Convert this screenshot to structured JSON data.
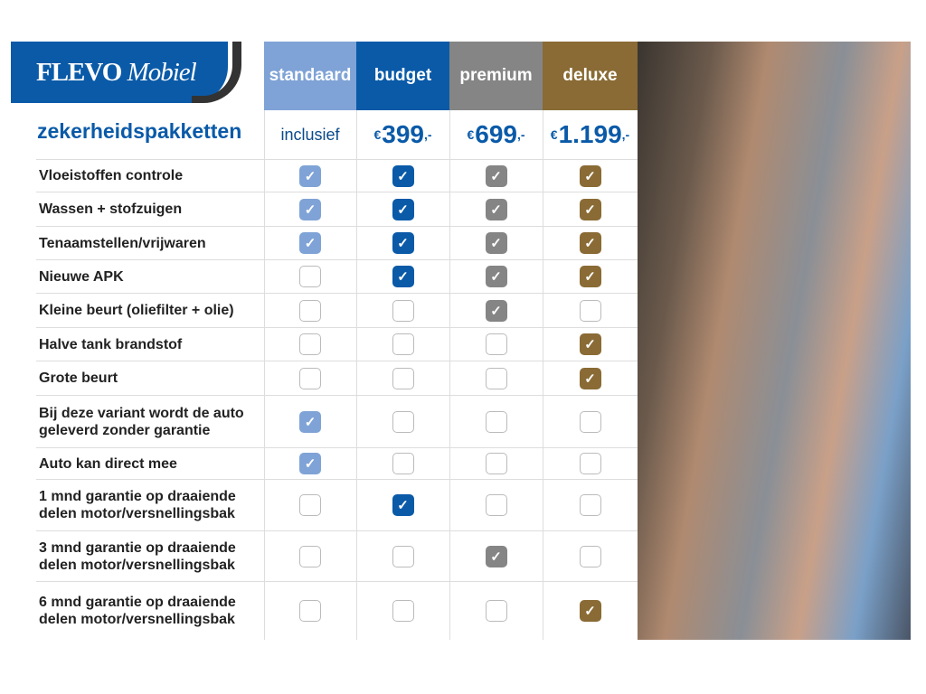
{
  "brand": {
    "name": "FLEVO",
    "name_italic": "Mobiel"
  },
  "title": "zekerheidspakketten",
  "packages": [
    {
      "name": "standaard",
      "price": "inclusief",
      "color": "#7fa3d6"
    },
    {
      "name": "budget",
      "currency": "€",
      "price": "399",
      "suffix": ",-",
      "color": "#0a5aa8"
    },
    {
      "name": "premium",
      "currency": "€",
      "price": "699",
      "suffix": ",-",
      "color": "#858585"
    },
    {
      "name": "deluxe",
      "currency": "€",
      "price": "1.199",
      "suffix": ",-",
      "color": "#8a6b35"
    }
  ],
  "features": [
    {
      "label": "Vloeistoffen controle",
      "checks": [
        true,
        true,
        true,
        true
      ]
    },
    {
      "label": "Wassen + stofzuigen",
      "checks": [
        true,
        true,
        true,
        true
      ]
    },
    {
      "label": "Tenaamstellen/vrijwaren",
      "checks": [
        true,
        true,
        true,
        true
      ]
    },
    {
      "label": "Nieuwe APK",
      "checks": [
        false,
        true,
        true,
        true
      ]
    },
    {
      "label": "Kleine beurt (oliefilter + olie)",
      "checks": [
        false,
        false,
        true,
        false
      ]
    },
    {
      "label": "Halve tank brandstof",
      "checks": [
        false,
        false,
        false,
        true
      ]
    },
    {
      "label": "Grote beurt",
      "checks": [
        false,
        false,
        false,
        true
      ]
    },
    {
      "label": "Bij deze variant wordt de auto geleverd zonder garantie",
      "checks": [
        true,
        false,
        false,
        false
      ]
    },
    {
      "label": "Auto kan direct mee",
      "checks": [
        true,
        false,
        false,
        false
      ]
    },
    {
      "label": "1 mnd garantie op draaiende delen motor/versnellingsbak",
      "checks": [
        false,
        true,
        false,
        false
      ]
    },
    {
      "label": "3 mnd garantie op draaiende delen motor/versnellingsbak",
      "checks": [
        false,
        false,
        true,
        false
      ]
    },
    {
      "label": "6 mnd garantie op draaiende delen motor/versnellingsbak",
      "checks": [
        false,
        false,
        false,
        true
      ]
    }
  ],
  "check_icon": "checkmark"
}
